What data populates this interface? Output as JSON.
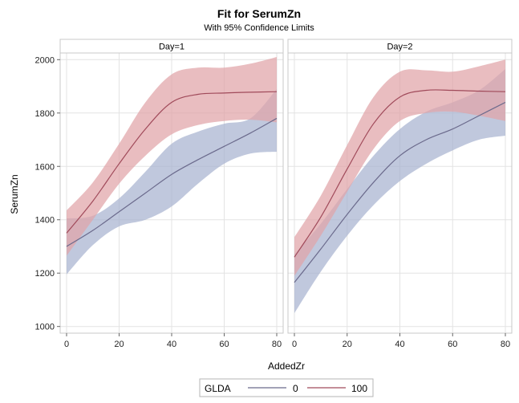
{
  "chart_data": {
    "type": "line",
    "title": "Fit for SerumZn",
    "subtitle": "With 95% Confidence Limits",
    "xlabel": "AddedZr",
    "ylabel": "SerumZn",
    "xlim": [
      -2,
      82
    ],
    "ylim": [
      975,
      2025
    ],
    "xticks": [
      0,
      20,
      40,
      60,
      80
    ],
    "yticks": [
      1000,
      1200,
      1400,
      1600,
      1800,
      2000
    ],
    "grid": true,
    "legend": {
      "title": "GLDA",
      "placement": "bottom-center",
      "entries": [
        "0",
        "100"
      ]
    },
    "colors": {
      "series_0_line": "#6b6a8c",
      "series_0_band": "#a8b3d0",
      "series_100_line": "#a04a5a",
      "series_100_band": "#e0a3a8",
      "grid": "#e3e3e3",
      "panel_border": "#c8c8c8",
      "header_bg": "#ffffff"
    },
    "panels": [
      {
        "label": "Day=1",
        "x": [
          0,
          10,
          20,
          30,
          40,
          50,
          60,
          70,
          80
        ],
        "series": [
          {
            "name": "0",
            "fit": [
              1300,
              1360,
              1430,
              1500,
              1570,
              1625,
              1675,
              1725,
              1780
            ],
            "lower": [
              1195,
              1305,
              1375,
              1400,
              1450,
              1535,
              1610,
              1648,
              1655
            ],
            "upper": [
              1405,
              1415,
              1480,
              1580,
              1685,
              1730,
              1760,
              1780,
              1890
            ]
          },
          {
            "name": "100",
            "fit": [
              1350,
              1470,
              1610,
              1740,
              1840,
              1870,
              1875,
              1878,
              1880
            ],
            "lower": [
              1265,
              1400,
              1535,
              1640,
              1720,
              1755,
              1770,
              1775,
              1765
            ],
            "upper": [
              1435,
              1540,
              1685,
              1840,
              1945,
              1970,
              1970,
              1985,
              2010
            ]
          }
        ]
      },
      {
        "label": "Day=2",
        "x": [
          0,
          10,
          20,
          30,
          40,
          50,
          60,
          70,
          80
        ],
        "series": [
          {
            "name": "0",
            "fit": [
              1165,
              1290,
              1420,
              1540,
              1640,
              1700,
              1740,
              1790,
              1840
            ],
            "lower": [
              1050,
              1205,
              1340,
              1455,
              1545,
              1610,
              1660,
              1700,
              1715
            ],
            "upper": [
              1270,
              1385,
              1515,
              1640,
              1740,
              1805,
              1840,
              1885,
              1965
            ]
          },
          {
            "name": "100",
            "fit": [
              1260,
              1410,
              1590,
              1760,
              1860,
              1885,
              1885,
              1882,
              1880
            ],
            "lower": [
              1190,
              1340,
              1505,
              1665,
              1770,
              1800,
              1805,
              1790,
              1770
            ],
            "upper": [
              1335,
              1490,
              1680,
              1860,
              1955,
              1960,
              1955,
              1975,
              2000
            ]
          }
        ]
      }
    ]
  }
}
